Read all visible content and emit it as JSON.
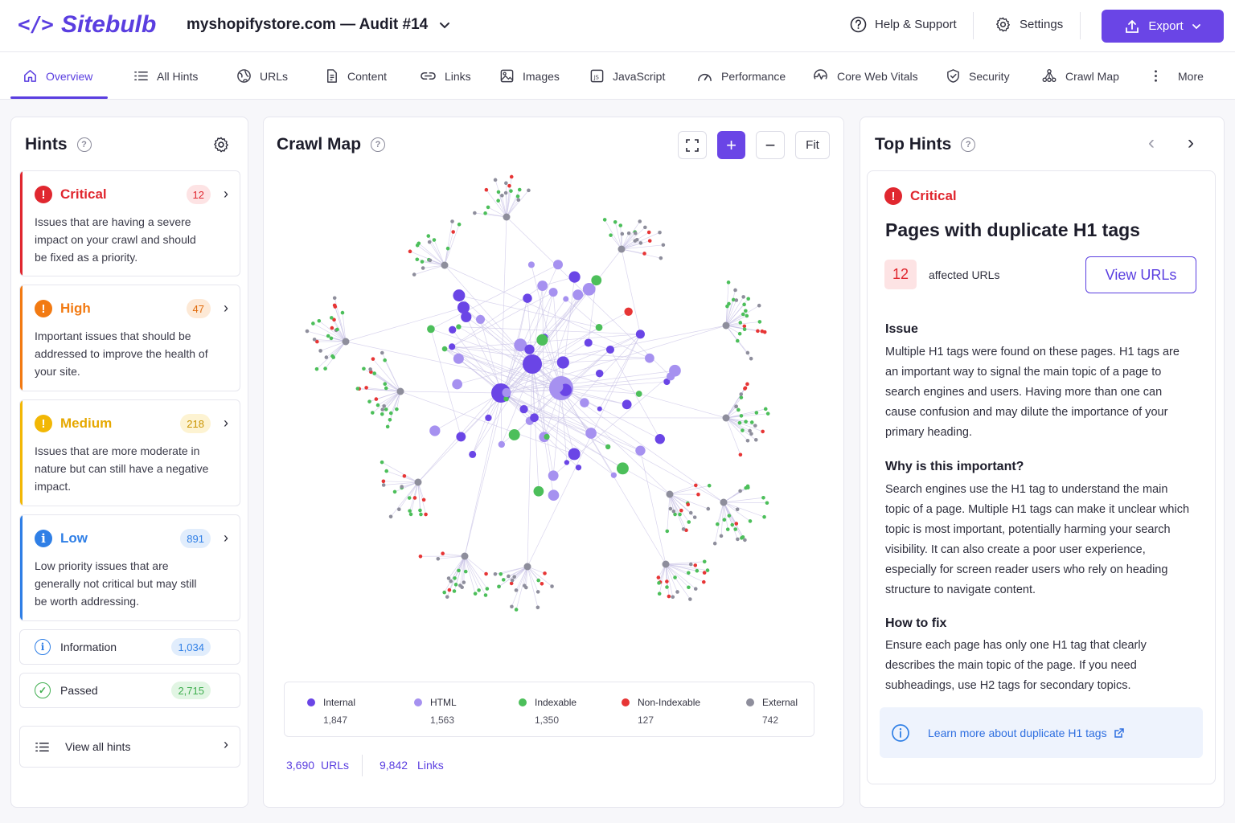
{
  "app": {
    "logo_mark": "</>",
    "logo_text": "Sitebulb"
  },
  "header": {
    "project": "myshopifystore.com — Audit #14",
    "help": "Help & Support",
    "settings": "Settings",
    "export": "Export"
  },
  "nav": {
    "items": [
      {
        "label": "Overview",
        "icon": "home-icon",
        "active": true
      },
      {
        "label": "All Hints",
        "icon": "list-icon"
      },
      {
        "label": "URLs",
        "icon": "globe-icon"
      },
      {
        "label": "Content",
        "icon": "document-icon"
      },
      {
        "label": "Links",
        "icon": "link-icon"
      },
      {
        "label": "Images",
        "icon": "image-icon"
      },
      {
        "label": "JavaScript",
        "icon": "js-icon"
      },
      {
        "label": "Performance",
        "icon": "gauge-icon"
      },
      {
        "label": "Core Web Vitals",
        "icon": "vitals-icon"
      },
      {
        "label": "Security",
        "icon": "shield-icon"
      },
      {
        "label": "Crawl Map",
        "icon": "sitemap-icon"
      },
      {
        "label": "More",
        "icon": "dots-vertical-icon"
      }
    ]
  },
  "hints": {
    "title": "Hints",
    "cards": [
      {
        "label": "Critical",
        "count": "12",
        "desc": "Issues that are having a severe impact on your crawl and should be fixed as a priority.",
        "color": "#e0272f",
        "badge_bg": "#fde3e4"
      },
      {
        "label": "High",
        "count": "47",
        "desc": "Important issues that should be addressed to improve the health of your site.",
        "color": "#f27a12",
        "badge_bg": "#fde9d6"
      },
      {
        "label": "Medium",
        "count": "218",
        "desc": "Issues that are more moderate in nature but can still have a negative impact.",
        "color": "#f2b705",
        "badge_bg": "#fdf3d2"
      },
      {
        "label": "Low",
        "count": "891",
        "desc": "Low priority issues that are generally not critical but may still be worth addressing.",
        "color": "#2f7fe6",
        "badge_bg": "#e1edfc"
      }
    ],
    "information": {
      "label": "Information",
      "count": "1,034"
    },
    "passed": {
      "label": "Passed",
      "count": "2,715"
    },
    "view_all": "View all hints"
  },
  "crawl_map": {
    "title": "Crawl Map",
    "fit_label": "Fit",
    "legend": [
      {
        "label": "Internal",
        "value": "1,847",
        "color": "#6a45e6"
      },
      {
        "label": "HTML",
        "value": "1,563",
        "color": "#a691f0"
      },
      {
        "label": "Indexable",
        "value": "1,350",
        "color": "#4cbf5a"
      },
      {
        "label": "Non-Indexable",
        "value": "127",
        "color": "#e73535"
      },
      {
        "label": "External",
        "value": "742",
        "color": "#8e8e9c"
      }
    ],
    "urls_count": "3,690",
    "urls_label": "URLs",
    "links_count": "9,842",
    "links_label": "Links"
  },
  "top_hints": {
    "title": "Top Hints",
    "severity": "Critical",
    "heading": "Pages with duplicate H1 tags",
    "affected_count": "12",
    "affected_label": "affected URLs",
    "view_urls": "View URLs",
    "issue_h": "Issue",
    "issue_p": "Multiple H1 tags were found on these pages. H1 tags are an important way to signal the main topic of a page to search engines and users. Having more than one can cause confusion and may dilute the importance of your primary heading.",
    "why_h": "Why is this important?",
    "why_p": "Search engines use the H1 tag to understand the main topic of a page. Multiple H1 tags can make it unclear which topic is most important, potentially harming your search visibility. It can also create a poor user experience, especially for screen reader users who rely on heading structure to navigate content.",
    "fix_h": "How to fix",
    "fix_p": "Ensure each page has only one H1 tag that clearly describes the main topic of the page. If you need subheadings, use H2 tags for secondary topics.",
    "learn_more": "Learn more about duplicate H1 tags"
  }
}
